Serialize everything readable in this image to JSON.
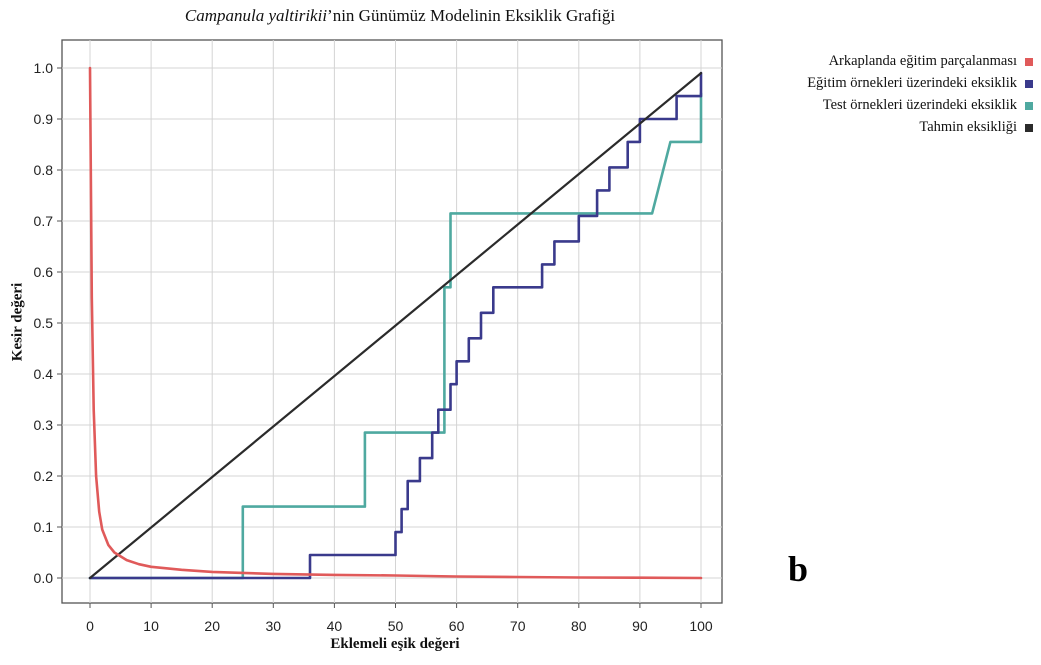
{
  "chart_data": {
    "type": "line",
    "title_species": "Campanula yaltirikii",
    "title_rest": "’nin Günümüz Modelinin Eksiklik Grafiği",
    "xlabel": "Eklemeli eşik değeri",
    "ylabel": "Kesir değeri",
    "xlim": [
      0,
      100
    ],
    "ylim": [
      0,
      1.0
    ],
    "x_ticks": [
      "0",
      "10",
      "20",
      "30",
      "40",
      "50",
      "60",
      "70",
      "80",
      "90",
      "100"
    ],
    "y_ticks": [
      "0.0",
      "0.1",
      "0.2",
      "0.3",
      "0.4",
      "0.5",
      "0.6",
      "0.7",
      "0.8",
      "0.9",
      "1.0"
    ],
    "grid": true,
    "legend_position": "top-right",
    "panel_label": "b",
    "series": [
      {
        "name": "Arkaplanda eğitim parçalanması",
        "color": "#e05a5a",
        "step": false,
        "points": [
          [
            0,
            1.0
          ],
          [
            0.3,
            0.55
          ],
          [
            0.6,
            0.33
          ],
          [
            1,
            0.2
          ],
          [
            1.5,
            0.13
          ],
          [
            2,
            0.095
          ],
          [
            3,
            0.065
          ],
          [
            4,
            0.05
          ],
          [
            6,
            0.035
          ],
          [
            8,
            0.027
          ],
          [
            10,
            0.022
          ],
          [
            15,
            0.016
          ],
          [
            20,
            0.012
          ],
          [
            25,
            0.01
          ],
          [
            30,
            0.008
          ],
          [
            40,
            0.006
          ],
          [
            50,
            0.005
          ],
          [
            60,
            0.003
          ],
          [
            70,
            0.002
          ],
          [
            80,
            0.001
          ],
          [
            90,
            0.0005
          ],
          [
            100,
            0.0
          ]
        ]
      },
      {
        "name": "Eğitim örnekleri üzerindeki eksiklik",
        "color": "#3a3a8c",
        "step": true,
        "points": [
          [
            0,
            0.0
          ],
          [
            36,
            0.0
          ],
          [
            36,
            0.045
          ],
          [
            50,
            0.045
          ],
          [
            50,
            0.09
          ],
          [
            51,
            0.09
          ],
          [
            51,
            0.135
          ],
          [
            52,
            0.135
          ],
          [
            52,
            0.19
          ],
          [
            54,
            0.19
          ],
          [
            54,
            0.235
          ],
          [
            56,
            0.235
          ],
          [
            56,
            0.285
          ],
          [
            57,
            0.285
          ],
          [
            57,
            0.33
          ],
          [
            59,
            0.33
          ],
          [
            59,
            0.38
          ],
          [
            60,
            0.38
          ],
          [
            60,
            0.425
          ],
          [
            62,
            0.425
          ],
          [
            62,
            0.47
          ],
          [
            64,
            0.47
          ],
          [
            64,
            0.52
          ],
          [
            66,
            0.52
          ],
          [
            66,
            0.57
          ],
          [
            74,
            0.57
          ],
          [
            74,
            0.615
          ],
          [
            76,
            0.615
          ],
          [
            76,
            0.66
          ],
          [
            80,
            0.66
          ],
          [
            80,
            0.71
          ],
          [
            83,
            0.71
          ],
          [
            83,
            0.76
          ],
          [
            85,
            0.76
          ],
          [
            85,
            0.805
          ],
          [
            88,
            0.805
          ],
          [
            88,
            0.855
          ],
          [
            90,
            0.855
          ],
          [
            90,
            0.9
          ],
          [
            96,
            0.9
          ],
          [
            96,
            0.945
          ],
          [
            100,
            0.945
          ],
          [
            100,
            0.99
          ]
        ]
      },
      {
        "name": "Test örnekleri üzerindeki eksiklik",
        "color": "#4fa9a0",
        "step": true,
        "points": [
          [
            0,
            0.0
          ],
          [
            25,
            0.0
          ],
          [
            25,
            0.14
          ],
          [
            45,
            0.14
          ],
          [
            45,
            0.285
          ],
          [
            58,
            0.285
          ],
          [
            58,
            0.57
          ],
          [
            59,
            0.57
          ],
          [
            59,
            0.715
          ],
          [
            92,
            0.715
          ],
          [
            92,
            0.715
          ],
          [
            95,
            0.855
          ],
          [
            100,
            0.855
          ],
          [
            100,
            0.95
          ]
        ]
      },
      {
        "name": "Tahmin eksikliği",
        "color": "#2b2b2b",
        "step": false,
        "points": [
          [
            0,
            0.0
          ],
          [
            100,
            0.99
          ]
        ]
      }
    ]
  }
}
